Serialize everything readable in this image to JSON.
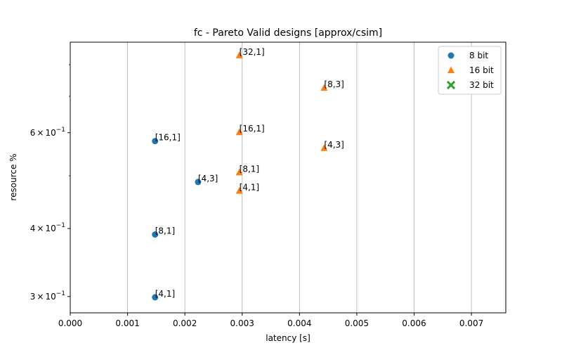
{
  "chart_data": {
    "type": "scatter",
    "title": "fc - Pareto Valid designs [approx/csim]",
    "xlabel": "latency [s]",
    "ylabel": "resource %",
    "xlim": [
      0.0,
      0.0076
    ],
    "ylim": [
      0.28,
      0.88
    ],
    "yscale": "log",
    "grid": "x-major vertical lines",
    "legend_placement": "top-right",
    "x_ticks": [
      {
        "value": 0.0,
        "label": "0.000"
      },
      {
        "value": 0.001,
        "label": "0.001"
      },
      {
        "value": 0.002,
        "label": "0.002"
      },
      {
        "value": 0.003,
        "label": "0.003"
      },
      {
        "value": 0.004,
        "label": "0.004"
      },
      {
        "value": 0.005,
        "label": "0.005"
      },
      {
        "value": 0.006,
        "label": "0.006"
      },
      {
        "value": 0.007,
        "label": "0.007"
      }
    ],
    "y_major_ticks": [
      {
        "value": 0.3,
        "mantissa": "3",
        "exponent": "−1"
      },
      {
        "value": 0.4,
        "mantissa": "4",
        "exponent": "−1"
      },
      {
        "value": 0.6,
        "mantissa": "6",
        "exponent": "−1"
      }
    ],
    "y_minor_ticks": [
      0.5,
      0.7,
      0.8
    ],
    "tick_label_base": "10",
    "tick_label_times": "×",
    "series": [
      {
        "name": "8 bit",
        "marker": "circle",
        "color": "#1f77b4",
        "points": [
          {
            "x": 0.00148,
            "y": 0.299,
            "label": "[4,1]"
          },
          {
            "x": 0.00148,
            "y": 0.39,
            "label": "[8,1]"
          },
          {
            "x": 0.00223,
            "y": 0.487,
            "label": "[4,3]"
          },
          {
            "x": 0.00148,
            "y": 0.579,
            "label": "[16,1]"
          }
        ]
      },
      {
        "name": "16 bit",
        "marker": "triangle",
        "color": "#ff7f0e",
        "points": [
          {
            "x": 0.00295,
            "y": 0.469,
            "label": "[4,1]"
          },
          {
            "x": 0.00295,
            "y": 0.507,
            "label": "[8,1]"
          },
          {
            "x": 0.00443,
            "y": 0.562,
            "label": "[4,3]"
          },
          {
            "x": 0.00295,
            "y": 0.601,
            "label": "[16,1]"
          },
          {
            "x": 0.00443,
            "y": 0.725,
            "label": "[8,3]"
          },
          {
            "x": 0.00295,
            "y": 0.832,
            "label": "[32,1]"
          }
        ]
      },
      {
        "name": "32 bit",
        "marker": "x",
        "color": "#2ca02c",
        "points": []
      }
    ]
  }
}
